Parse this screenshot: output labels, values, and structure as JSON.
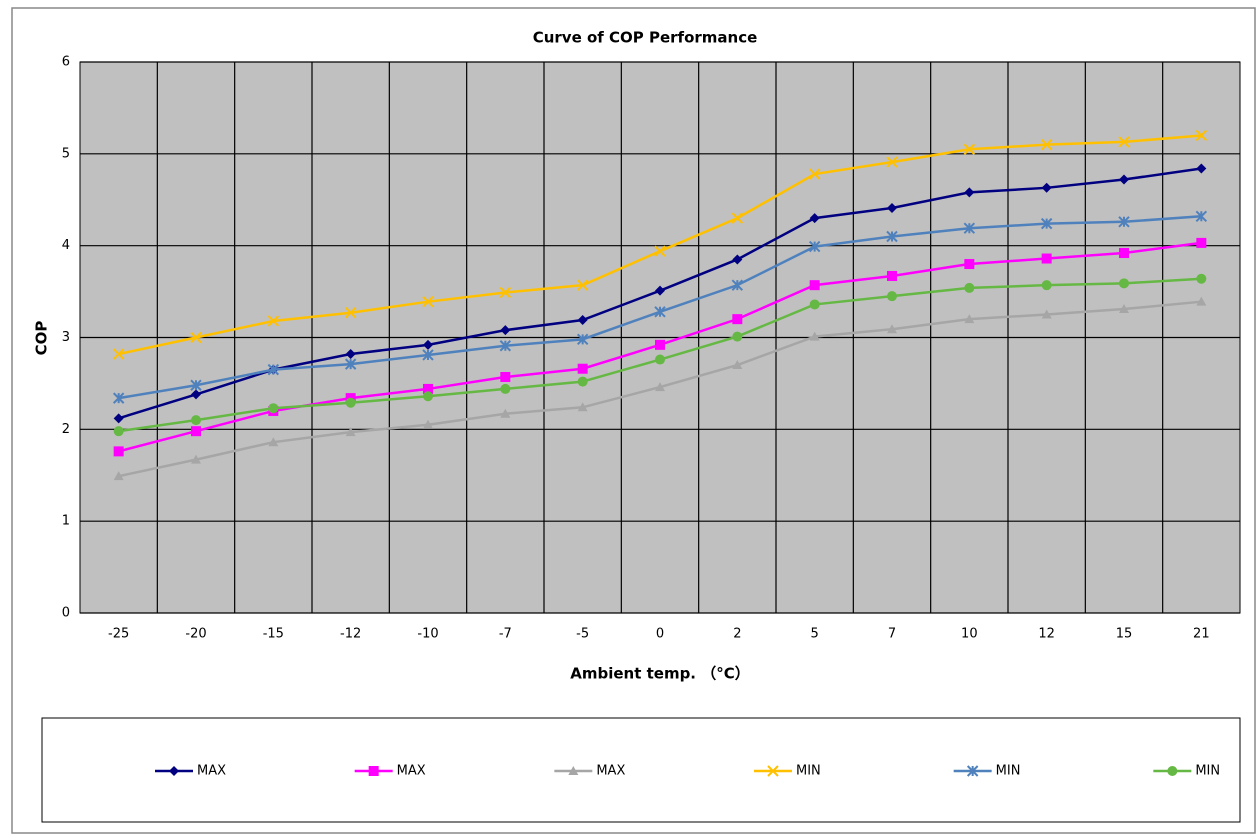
{
  "chart_data": {
    "type": "line",
    "title": "Curve of COP Performance",
    "x_label": "Ambient temp. （°C）",
    "y_label": "COP",
    "categories": [
      "-25",
      "-20",
      "-15",
      "-12",
      "-10",
      "-7",
      "-5",
      "0",
      "2",
      "5",
      "7",
      "10",
      "12",
      "15",
      "21"
    ],
    "ylim": [
      0,
      6
    ],
    "yticks": [
      0,
      1,
      2,
      3,
      4,
      5,
      6
    ],
    "grid": true,
    "plot_background": "#c0c0c0",
    "legend": "bottom",
    "series": [
      {
        "name": "MAX",
        "color": "#000080",
        "marker": "diamond",
        "values": [
          2.12,
          2.38,
          2.65,
          2.82,
          2.92,
          3.08,
          3.19,
          3.51,
          3.85,
          4.3,
          4.41,
          4.58,
          4.63,
          4.72,
          4.84
        ]
      },
      {
        "name": "MAX",
        "color": "#ff00ff",
        "marker": "square",
        "values": [
          1.76,
          1.98,
          2.2,
          2.34,
          2.44,
          2.57,
          2.66,
          2.92,
          3.2,
          3.57,
          3.67,
          3.8,
          3.86,
          3.92,
          4.03
        ]
      },
      {
        "name": "MAX",
        "color": "#a6a6a6",
        "marker": "triangle",
        "values": [
          1.49,
          1.67,
          1.86,
          1.97,
          2.05,
          2.17,
          2.24,
          2.46,
          2.7,
          3.01,
          3.09,
          3.2,
          3.25,
          3.31,
          3.39
        ]
      },
      {
        "name": "MIN",
        "color": "#ffc000",
        "marker": "x",
        "values": [
          2.82,
          3.0,
          3.18,
          3.27,
          3.39,
          3.49,
          3.57,
          3.94,
          4.3,
          4.78,
          4.91,
          5.05,
          5.1,
          5.13,
          5.2
        ]
      },
      {
        "name": "MIN",
        "color": "#4f81bd",
        "marker": "star",
        "values": [
          2.34,
          2.48,
          2.65,
          2.71,
          2.81,
          2.91,
          2.98,
          3.28,
          3.57,
          3.99,
          4.1,
          4.19,
          4.24,
          4.26,
          4.32
        ]
      },
      {
        "name": "MIN",
        "color": "#66b844",
        "marker": "circle",
        "values": [
          1.98,
          2.1,
          2.23,
          2.29,
          2.36,
          2.44,
          2.52,
          2.76,
          3.01,
          3.36,
          3.45,
          3.54,
          3.57,
          3.59,
          3.64
        ]
      }
    ]
  }
}
